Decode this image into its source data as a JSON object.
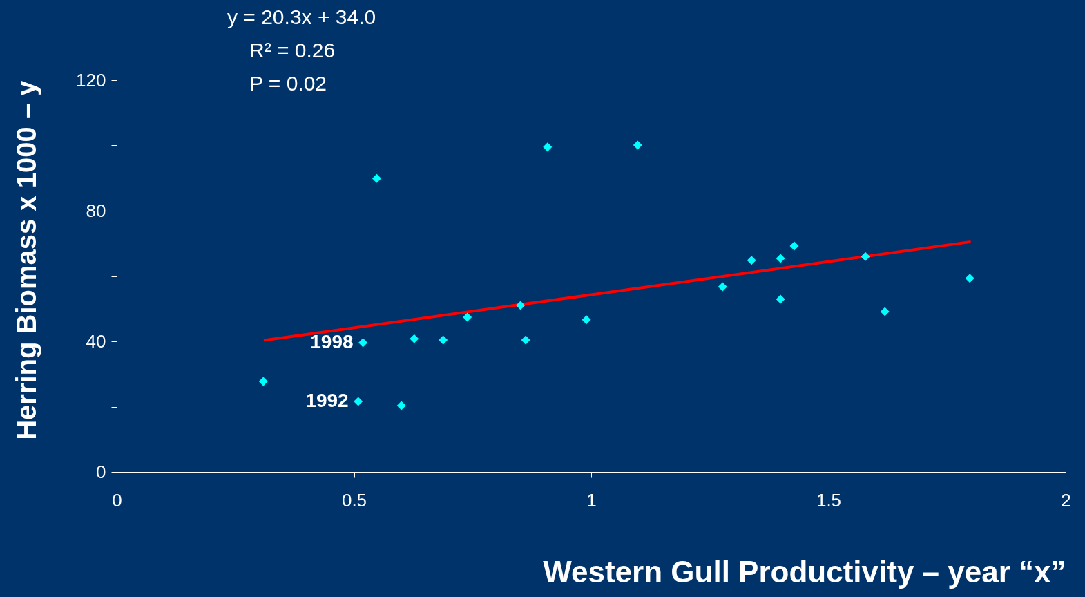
{
  "chart_data": {
    "type": "scatter",
    "xlabel": "Western Gull Productivity – year “x”",
    "ylabel": "Herring Biomass x 1000 – y",
    "xlim": [
      0,
      2
    ],
    "xticks": [
      0,
      0.5,
      1,
      1.5,
      2
    ],
    "ylim": [
      0,
      120
    ],
    "yticks": [
      0,
      {
        "value": 20,
        "label": null
      },
      40,
      {
        "value": 60,
        "label": null
      },
      80,
      {
        "value": 100,
        "label": null
      },
      120
    ],
    "series": [
      {
        "type": "scatter",
        "color": "#00ffff",
        "marker": "diamond",
        "x": [
          0.309,
          0.509,
          0.519,
          0.548,
          0.6,
          0.627,
          0.688,
          0.739,
          0.851,
          0.862,
          0.908,
          0.99,
          1.098,
          1.277,
          1.338,
          1.399,
          1.399,
          1.428,
          1.578,
          1.619,
          1.798
        ],
        "values": [
          27.7,
          21.6,
          39.6,
          89.9,
          20.3,
          40.8,
          40.4,
          47.4,
          51.0,
          40.4,
          99.5,
          46.6,
          100.1,
          56.7,
          64.8,
          65.4,
          52.9,
          69.2,
          66.0,
          49.1,
          59.3
        ]
      },
      {
        "type": "line",
        "color": "#ff0000",
        "line_style": "solid",
        "x": [
          0.31,
          1.8
        ],
        "values": [
          40.3,
          70.5
        ]
      }
    ],
    "annotations": [
      "y = 20.3x + 34.0",
      "R² = 0.26",
      "P = 0.02",
      {
        "text": "1998",
        "x": 0.519,
        "y": 39.6
      },
      {
        "text": "1992",
        "x": 0.509,
        "y": 21.6
      }
    ],
    "grid": false
  }
}
